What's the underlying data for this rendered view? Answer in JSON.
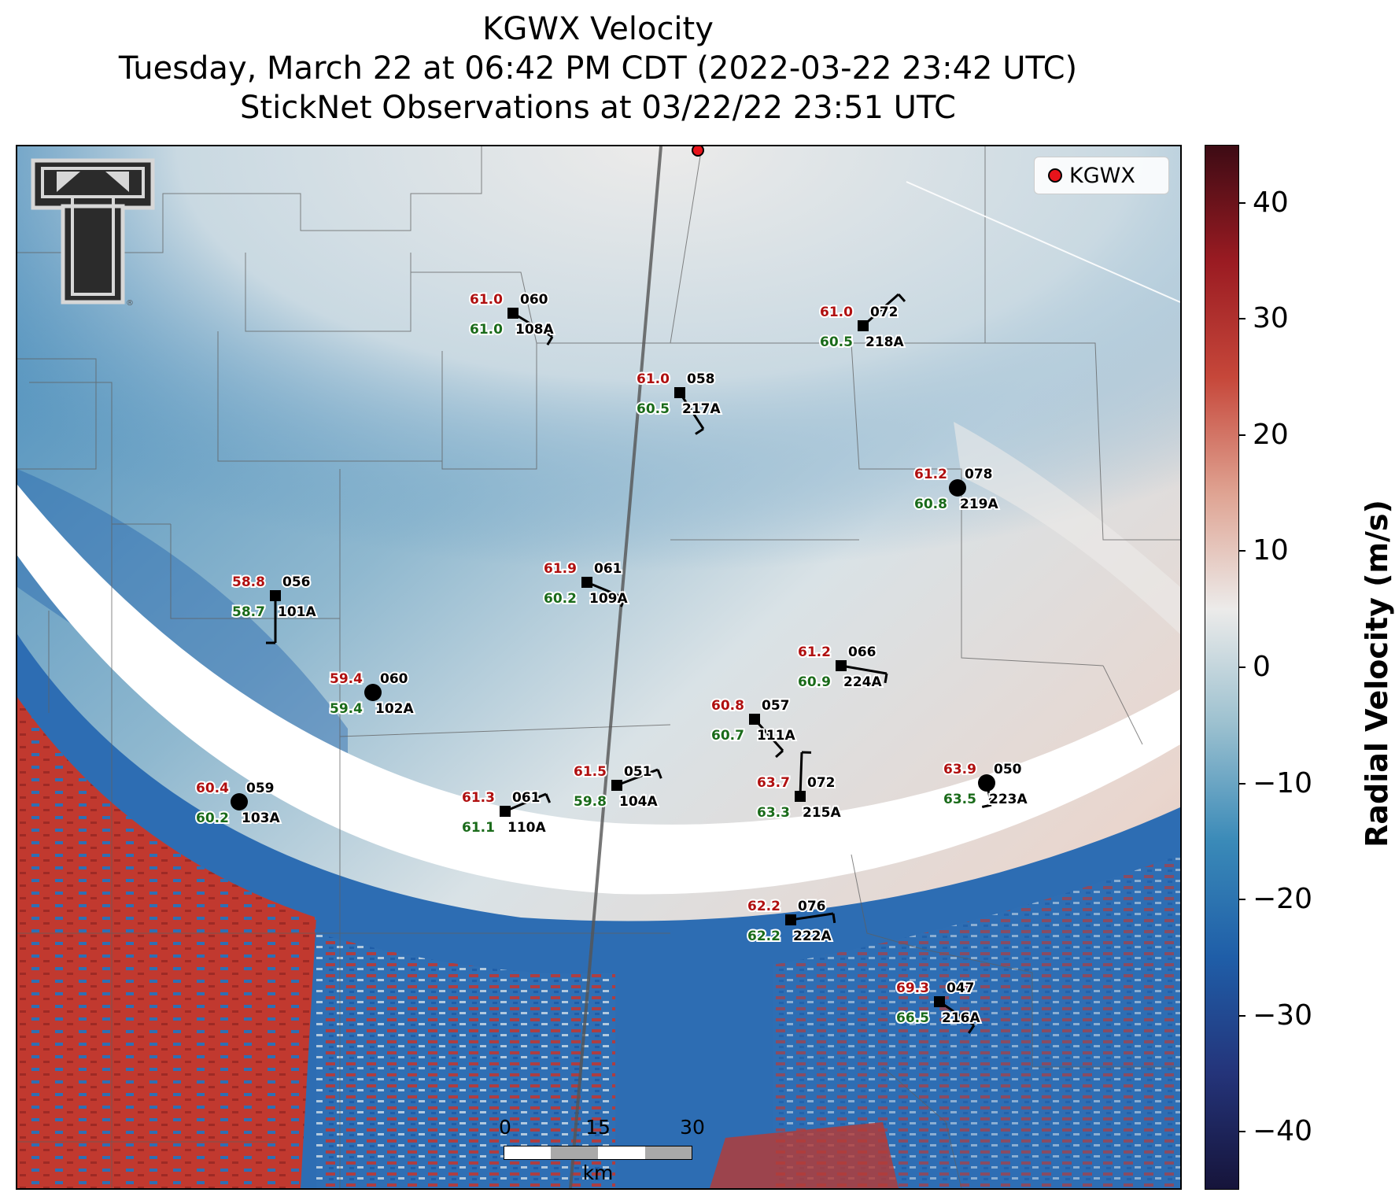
{
  "title": {
    "line1": "KGWX Velocity",
    "line2": "Tuesday, March 22 at 06:42 PM CDT (2022-03-22 23:42 UTC)",
    "line3": "StickNet Observations at 03/22/22 23:51 UTC"
  },
  "legend": {
    "label": "KGWX",
    "marker_color": "#e8141b"
  },
  "colorbar": {
    "label": "Radial Velocity (m/s)",
    "ticks": [
      "40",
      "30",
      "20",
      "10",
      "0",
      "−10",
      "−20",
      "−30",
      "−40"
    ],
    "tick_values": [
      40,
      30,
      20,
      10,
      0,
      -10,
      -20,
      -30,
      -40
    ],
    "range": [
      -45,
      45
    ],
    "colors": {
      "max": "#3d0b14",
      "high": "#9a1b22",
      "mid_high": "#c6473a",
      "light_high": "#dfa392",
      "zero": "#ecebea",
      "light_low": "#9bc0cf",
      "mid_low": "#3a8ab8",
      "low": "#1f5ea8",
      "deep_low": "#24347a",
      "min": "#16143a"
    }
  },
  "scale_bar": {
    "labels": [
      "0",
      "15",
      "30"
    ],
    "unit": "km"
  },
  "logo": {
    "name": "Texas Tech Double T",
    "registered_mark": "®"
  },
  "stations": [
    {
      "id": "108A",
      "temp": "61.0",
      "dew": "61.0",
      "dir": "060",
      "marker": "square"
    },
    {
      "id": "218A",
      "temp": "61.0",
      "dew": "60.5",
      "dir": "072",
      "marker": "square"
    },
    {
      "id": "217A",
      "temp": "61.0",
      "dew": "60.5",
      "dir": "058",
      "marker": "square"
    },
    {
      "id": "219A",
      "temp": "61.2",
      "dew": "60.8",
      "dir": "078",
      "marker": "circle"
    },
    {
      "id": "101A",
      "temp": "58.8",
      "dew": "58.7",
      "dir": "056",
      "marker": "square"
    },
    {
      "id": "109A",
      "temp": "61.9",
      "dew": "60.2",
      "dir": "061",
      "marker": "square"
    },
    {
      "id": "224A",
      "temp": "61.2",
      "dew": "60.9",
      "dir": "066",
      "marker": "square"
    },
    {
      "id": "102A",
      "temp": "59.4",
      "dew": "59.4",
      "dir": "060",
      "marker": "circle"
    },
    {
      "id": "111A",
      "temp": "60.8",
      "dew": "60.7",
      "dir": "057",
      "marker": "square"
    },
    {
      "id": "103A",
      "temp": "60.4",
      "dew": "60.2",
      "dir": "059",
      "marker": "circle"
    },
    {
      "id": "104A",
      "temp": "61.5",
      "dew": "59.8",
      "dir": "051",
      "marker": "square"
    },
    {
      "id": "110A",
      "temp": "61.3",
      "dew": "61.1",
      "dir": "061",
      "marker": "square"
    },
    {
      "id": "215A",
      "temp": "63.7",
      "dew": "63.3",
      "dir": "072",
      "marker": "square"
    },
    {
      "id": "223A",
      "temp": "63.9",
      "dew": "63.5",
      "dir": "050",
      "marker": "circle"
    },
    {
      "id": "222A",
      "temp": "62.2",
      "dew": "62.2",
      "dir": "076",
      "marker": "square"
    },
    {
      "id": "216A",
      "temp": "69.3",
      "dew": "66.5",
      "dir": "047",
      "marker": "square"
    }
  ]
}
